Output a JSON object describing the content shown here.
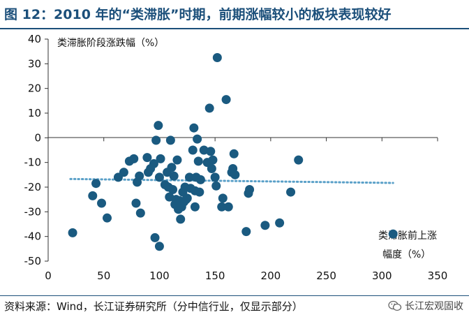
{
  "figure": {
    "title": "图 12：2010 年的“类滞胀”时期，前期涨幅较小的板块表现较好",
    "source": "资料来源：Wind，长江证券研究所（分中信行业，仅显示部分）",
    "watermark": "长江宏观固收"
  },
  "chart_data": {
    "type": "scatter",
    "title": "",
    "ylabel": "类滞胀阶段涨跌幅（%）",
    "xlabel_lines": [
      "类滞胀前上涨",
      "幅度（%）"
    ],
    "xlim": [
      0,
      350
    ],
    "ylim": [
      -50,
      40
    ],
    "xticks": [
      0,
      50,
      100,
      150,
      200,
      250,
      300,
      350
    ],
    "yticks": [
      40,
      30,
      20,
      10,
      0,
      -10,
      -20,
      -30,
      -40,
      -50
    ],
    "grid": false,
    "point_color": "#1a5a80",
    "trendline": {
      "style": "dotted",
      "color": "#5aa0c8",
      "x": [
        20,
        310
      ],
      "y": [
        -16.7,
        -18.3
      ]
    },
    "points": [
      [
        22,
        -38.5
      ],
      [
        40,
        -23.5
      ],
      [
        43,
        -18.5
      ],
      [
        48,
        -26.5
      ],
      [
        53,
        -32.5
      ],
      [
        63,
        -16
      ],
      [
        68,
        -14
      ],
      [
        73,
        -9.5
      ],
      [
        77,
        -8.5
      ],
      [
        79,
        -26.5
      ],
      [
        80,
        -18
      ],
      [
        82,
        -15.5
      ],
      [
        83,
        -30.5
      ],
      [
        89,
        -8
      ],
      [
        90,
        -14
      ],
      [
        92,
        -12.5
      ],
      [
        95,
        -10.5
      ],
      [
        96,
        -40.5
      ],
      [
        97,
        -1
      ],
      [
        99,
        5
      ],
      [
        100,
        -16
      ],
      [
        100,
        -44
      ],
      [
        101,
        -8.5
      ],
      [
        105,
        -19
      ],
      [
        107,
        -14
      ],
      [
        108,
        -20
      ],
      [
        109,
        -24
      ],
      [
        110,
        -1
      ],
      [
        111,
        -12
      ],
      [
        112,
        -21
      ],
      [
        113,
        -15.5
      ],
      [
        114,
        -27
      ],
      [
        115,
        -25
      ],
      [
        116,
        -9
      ],
      [
        117,
        -29
      ],
      [
        118,
        -25.5
      ],
      [
        119,
        -33
      ],
      [
        120,
        -28
      ],
      [
        121,
        -22
      ],
      [
        122,
        -26
      ],
      [
        123,
        -20
      ],
      [
        124,
        -25
      ],
      [
        125,
        -24.5
      ],
      [
        127,
        -16
      ],
      [
        128,
        -20.5
      ],
      [
        130,
        -5
      ],
      [
        131,
        4
      ],
      [
        132,
        -28
      ],
      [
        132,
        -21.5
      ],
      [
        133,
        -16
      ],
      [
        134,
        -0.5
      ],
      [
        135,
        -9.5
      ],
      [
        136,
        -22
      ],
      [
        137,
        -17
      ],
      [
        140,
        -5
      ],
      [
        143,
        -10
      ],
      [
        145,
        12
      ],
      [
        146,
        -5.5
      ],
      [
        147,
        -12.5
      ],
      [
        148,
        -9
      ],
      [
        150,
        -16
      ],
      [
        151,
        -19.5
      ],
      [
        152,
        32.5
      ],
      [
        156,
        -28
      ],
      [
        157,
        -24.5
      ],
      [
        160,
        15.5
      ],
      [
        162,
        -28
      ],
      [
        165,
        -14
      ],
      [
        166,
        -12.5
      ],
      [
        167,
        -6.5
      ],
      [
        168,
        -15
      ],
      [
        178,
        -38
      ],
      [
        180,
        -22.5
      ],
      [
        181,
        -21
      ],
      [
        195,
        -35.5
      ],
      [
        208,
        -34.5
      ],
      [
        218,
        -22
      ],
      [
        225,
        -9
      ],
      [
        310,
        -39
      ]
    ]
  }
}
